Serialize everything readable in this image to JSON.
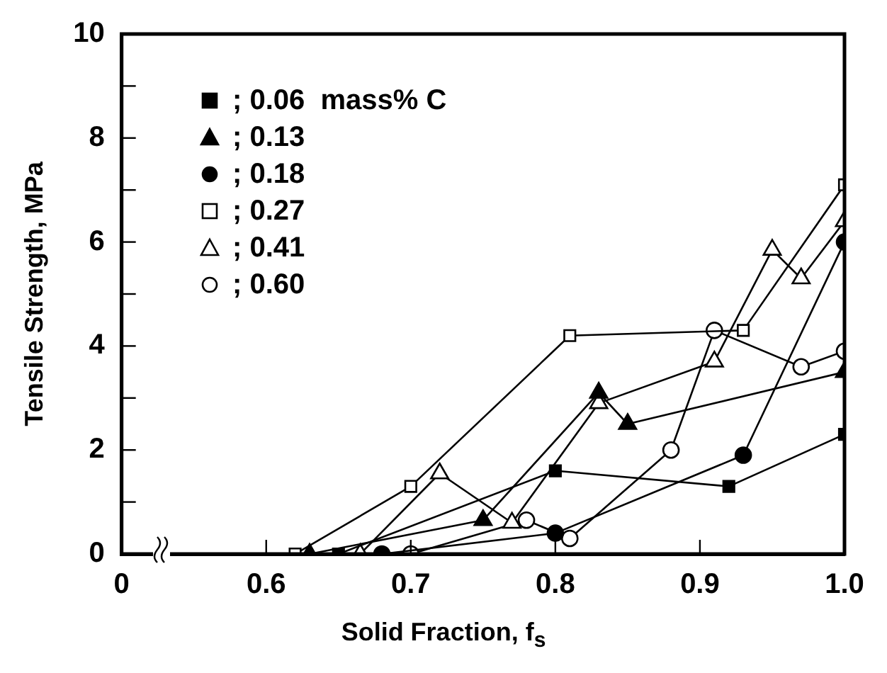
{
  "chart_data": {
    "type": "line",
    "xlabel": "Solid Fraction, f$_{s}$",
    "ylabel": "Tensile Strength, MPa",
    "xlim": [
      0.5,
      1.0
    ],
    "xticks": [
      {
        "value": 0.5,
        "label": "0"
      },
      0.6,
      0.7,
      0.8,
      0.9,
      {
        "value": 1.0,
        "label": "1.0"
      }
    ],
    "ylim": [
      0,
      10
    ],
    "yticks": [
      0,
      {
        "value": 1,
        "label": null
      },
      2,
      {
        "value": 3,
        "label": null
      },
      4,
      {
        "value": 5,
        "label": null
      },
      6,
      {
        "value": 7,
        "label": null
      },
      8,
      {
        "value": 9,
        "label": null
      },
      10
    ],
    "grid": false,
    "legend": "top left",
    "line_style": "solid",
    "series": [
      {
        "name": "; 0.06  mass% C",
        "color": "#000000",
        "marker": "square",
        "x": [
          0.65,
          0.8,
          0.92,
          1.0
        ],
        "values": [
          0,
          1.6,
          1.3,
          2.3
        ]
      },
      {
        "name": "; 0.13",
        "color": "#000000",
        "marker": "triangle",
        "x": [
          0.63,
          0.75,
          0.83,
          0.85,
          1.0
        ],
        "values": [
          0,
          0.65,
          3.1,
          2.5,
          3.5
        ]
      },
      {
        "name": "; 0.18",
        "color": "#000000",
        "marker": "circle",
        "x": [
          0.68,
          0.8,
          0.93,
          1.0
        ],
        "values": [
          0,
          0.4,
          1.9,
          6.0
        ]
      },
      {
        "name": "; 0.27",
        "color": "#000000",
        "marker": "square",
        "colors": [
          "#ffffff",
          "#ffffff",
          "#ffffff",
          "#ffffff",
          "#ffffff"
        ],
        "x": [
          0.62,
          0.7,
          0.81,
          0.93,
          1.0
        ],
        "values": [
          0,
          1.3,
          4.2,
          4.3,
          7.1
        ]
      },
      {
        "name": "; 0.41",
        "color": "#000000",
        "marker": "triangle",
        "colors": [
          "#ffffff",
          "#ffffff",
          "#ffffff",
          "#ffffff",
          "#ffffff",
          "#ffffff",
          "#ffffff",
          "#ffffff"
        ],
        "x": [
          0.665,
          0.72,
          0.77,
          0.83,
          0.91,
          0.95,
          0.97,
          1.0
        ],
        "values": [
          0,
          1.55,
          0.6,
          2.9,
          3.7,
          5.85,
          5.3,
          6.4
        ]
      },
      {
        "name": "; 0.60",
        "color": "#000000",
        "marker": "circle",
        "colors": [
          "#ffffff",
          "#ffffff",
          "#ffffff",
          "#ffffff",
          "#ffffff",
          "#ffffff",
          "#ffffff"
        ],
        "x": [
          0.7,
          0.78,
          0.81,
          0.88,
          0.91,
          0.97,
          1.0
        ],
        "values": [
          0,
          0.65,
          0.3,
          2.0,
          4.3,
          3.6,
          3.9
        ]
      }
    ]
  }
}
